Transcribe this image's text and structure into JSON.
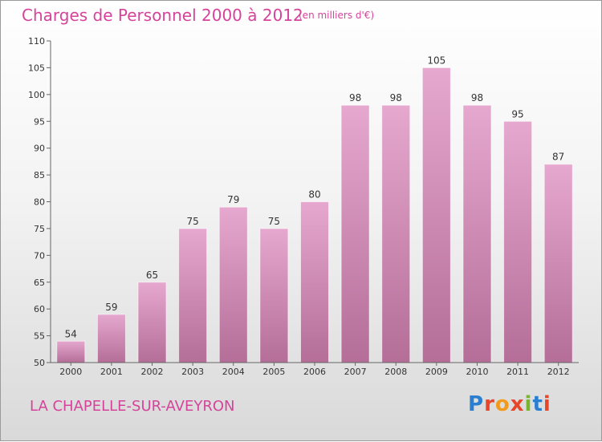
{
  "header": {
    "title": "Charges de Personnel 2000 à 2012",
    "subtitle": "(en milliers d'€)"
  },
  "commune": "LA CHAPELLE-SUR-AVEYRON",
  "logo": {
    "text": "Proxiti",
    "letter_colors": [
      "#2a7fd0",
      "#e8462b",
      "#f29a1e",
      "#e8462b",
      "#7ab32e",
      "#2a7fd0",
      "#e8462b"
    ]
  },
  "colors": {
    "bar_top": "#e6a8cf",
    "bar_bottom": "#b46e98",
    "axis": "#666666"
  },
  "chart_data": {
    "type": "bar",
    "title": "Charges de Personnel 2000 à 2012",
    "subtitle": "(en milliers d'€)",
    "categories": [
      "2000",
      "2001",
      "2002",
      "2003",
      "2004",
      "2005",
      "2006",
      "2007",
      "2008",
      "2009",
      "2010",
      "2011",
      "2012"
    ],
    "values": [
      54,
      59,
      65,
      75,
      79,
      75,
      80,
      98,
      98,
      105,
      98,
      95,
      87
    ],
    "ylim": [
      50,
      110
    ],
    "yticks": [
      50,
      55,
      60,
      65,
      70,
      75,
      80,
      85,
      90,
      95,
      100,
      105,
      110
    ],
    "grid": false,
    "legend": "none"
  }
}
